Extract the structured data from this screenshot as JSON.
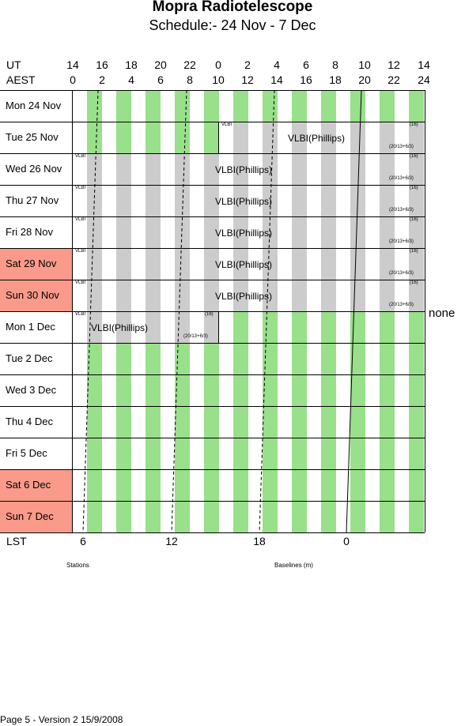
{
  "title": "Mopra Radiotelescope",
  "subtitle": "Schedule:- 24 Nov - 7  Dec",
  "axis": {
    "ut_label": "UT",
    "aest_label": "AEST",
    "ut_ticks": [
      "14",
      "16",
      "18",
      "20",
      "22",
      "0",
      "2",
      "4",
      "6",
      "8",
      "10",
      "12",
      "14"
    ],
    "aest_ticks": [
      "0",
      "2",
      "4",
      "6",
      "8",
      "10",
      "12",
      "14",
      "16",
      "18",
      "20",
      "22",
      "24"
    ],
    "lst_label": "LST",
    "lst_ticks": [
      "6",
      "12",
      "18",
      "0"
    ]
  },
  "days": [
    {
      "label": "Mon  24 Nov",
      "weekend": false
    },
    {
      "label": "Tue  25 Nov",
      "weekend": false
    },
    {
      "label": "Wed  26 Nov",
      "weekend": false
    },
    {
      "label": "Thu  27 Nov",
      "weekend": false
    },
    {
      "label": "Fri    28 Nov",
      "weekend": false
    },
    {
      "label": "Sat   29 Nov",
      "weekend": true
    },
    {
      "label": "Sun  30 Nov",
      "weekend": true
    },
    {
      "label": "Mon   1  Dec",
      "weekend": false
    },
    {
      "label": "Tue    2  Dec",
      "weekend": false
    },
    {
      "label": "Wed   3  Dec",
      "weekend": false
    },
    {
      "label": "Thu    4  Dec",
      "weekend": false
    },
    {
      "label": "Fri     5  Dec",
      "weekend": false
    },
    {
      "label": "Sat    6  Dec",
      "weekend": true
    },
    {
      "label": "Sun   7  Dec",
      "weekend": true
    }
  ],
  "observations": {
    "project": "VLBI(Phillips)",
    "small_tag": "VLBI",
    "receiver": "(16)",
    "config": "(20/13+6/3)"
  },
  "array_config": "none",
  "legend": {
    "stations": "Stations",
    "baselines": "Baselines (m)"
  },
  "footer": "Page 5 - Version 2  15/9/2008",
  "colors": {
    "green": "#98e08a",
    "grey": "#cccccc",
    "weekend": "#fa9a8a"
  }
}
